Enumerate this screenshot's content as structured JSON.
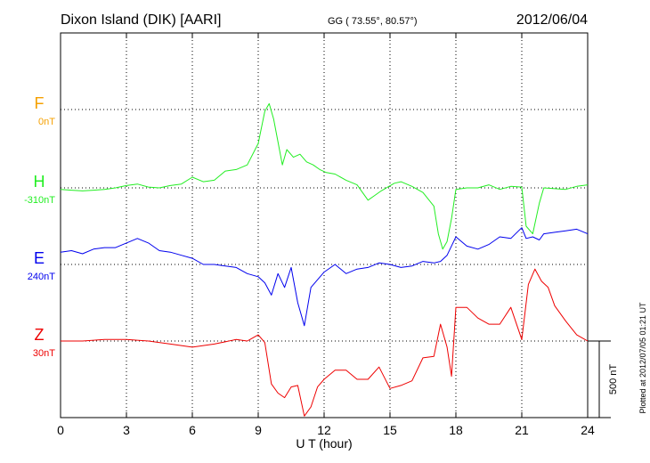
{
  "header": {
    "station": "Dixon Island (DIK)  [AARI]",
    "coords": "GG ( 73.55°,  80.57°)",
    "date": "2012/06/04"
  },
  "footer": {
    "plotted": "Plotted at 2012/07/05 01:21  UT"
  },
  "chart_data": {
    "type": "line",
    "xlabel": "U T (hour)",
    "ylabel": "",
    "xlim": [
      0,
      24
    ],
    "xticks": [
      "0",
      "3",
      "6",
      "9",
      "12",
      "15",
      "18",
      "21",
      "24"
    ],
    "scale_bar": "500 nT",
    "grid": true,
    "series": [
      {
        "name": "F",
        "offset": "0nT",
        "color": "#f5a000",
        "x": [],
        "values": []
      },
      {
        "name": "H",
        "offset": "-310nT",
        "color": "#22ee22",
        "x": [
          0,
          0.5,
          1,
          1.5,
          2,
          2.5,
          3,
          3.5,
          4,
          4.5,
          5,
          5.5,
          6,
          6.5,
          7,
          7.5,
          8,
          8.5,
          9,
          9.3,
          9.5,
          9.7,
          9.9,
          10.1,
          10.3,
          10.6,
          10.9,
          11.2,
          11.5,
          11.8,
          12.1,
          12.5,
          13,
          13.5,
          14,
          14.3,
          14.6,
          14.9,
          15.2,
          15.5,
          16,
          16.5,
          17,
          17.2,
          17.4,
          17.6,
          17.8,
          18,
          18.5,
          19,
          19.5,
          20,
          20.5,
          21,
          21.2,
          21.5,
          21.8,
          22,
          22.5,
          23,
          23.5,
          24
        ],
        "values": [
          -10,
          -15,
          -20,
          -15,
          -10,
          0,
          15,
          25,
          5,
          0,
          15,
          25,
          70,
          40,
          50,
          110,
          120,
          150,
          290,
          500,
          550,
          450,
          300,
          150,
          250,
          200,
          220,
          170,
          150,
          120,
          100,
          90,
          50,
          20,
          -80,
          -50,
          -20,
          5,
          30,
          40,
          10,
          -30,
          -120,
          -300,
          -400,
          -350,
          -200,
          -10,
          0,
          0,
          20,
          -10,
          10,
          5,
          -250,
          -300,
          -100,
          0,
          -5,
          -10,
          10,
          20
        ]
      },
      {
        "name": "E",
        "offset": "240nT",
        "color": "#0000ee",
        "x": [
          0,
          0.5,
          1,
          1.5,
          2,
          2.5,
          3,
          3.5,
          4,
          4.5,
          5,
          5.5,
          6,
          6.5,
          7,
          7.5,
          8,
          8.5,
          9,
          9.3,
          9.6,
          9.9,
          10.2,
          10.5,
          10.8,
          11.1,
          11.4,
          11.7,
          12,
          12.5,
          13,
          13.5,
          14,
          14.5,
          15,
          15.5,
          16,
          16.5,
          17,
          17.3,
          17.6,
          18,
          18.5,
          19,
          19.5,
          20,
          20.5,
          21,
          21.2,
          21.5,
          21.8,
          22,
          22.5,
          23,
          23.5,
          24
        ],
        "values": [
          80,
          90,
          70,
          100,
          110,
          110,
          140,
          170,
          140,
          90,
          80,
          60,
          40,
          0,
          0,
          -10,
          -20,
          -60,
          -80,
          -120,
          -200,
          -60,
          -150,
          -20,
          -250,
          -400,
          -150,
          -100,
          -50,
          0,
          -60,
          -30,
          -20,
          10,
          0,
          -20,
          -10,
          20,
          10,
          20,
          60,
          180,
          120,
          100,
          130,
          180,
          170,
          240,
          170,
          180,
          160,
          200,
          210,
          220,
          230,
          200
        ]
      },
      {
        "name": "Z",
        "offset": "30nT",
        "color": "#ee0000",
        "x": [
          0,
          1,
          2,
          3,
          4,
          5,
          6,
          7,
          8,
          8.5,
          9,
          9.3,
          9.6,
          9.9,
          10.2,
          10.5,
          10.8,
          11.1,
          11.4,
          11.7,
          12,
          12.5,
          13,
          13.5,
          14,
          14.5,
          15,
          15.5,
          16,
          16.5,
          17,
          17.3,
          17.6,
          17.8,
          18,
          18.5,
          19,
          19.5,
          20,
          20.5,
          21,
          21.3,
          21.6,
          21.9,
          22.2,
          22.5,
          23,
          23.5,
          24
        ],
        "values": [
          0,
          0,
          10,
          10,
          0,
          -20,
          -40,
          -20,
          10,
          0,
          40,
          -10,
          -280,
          -340,
          -370,
          -300,
          -290,
          -490,
          -430,
          -300,
          -250,
          -190,
          -190,
          -250,
          -250,
          -170,
          -310,
          -290,
          -260,
          -110,
          -100,
          110,
          -40,
          -230,
          220,
          220,
          150,
          110,
          110,
          220,
          10,
          370,
          470,
          390,
          350,
          230,
          130,
          40,
          0
        ]
      }
    ]
  }
}
